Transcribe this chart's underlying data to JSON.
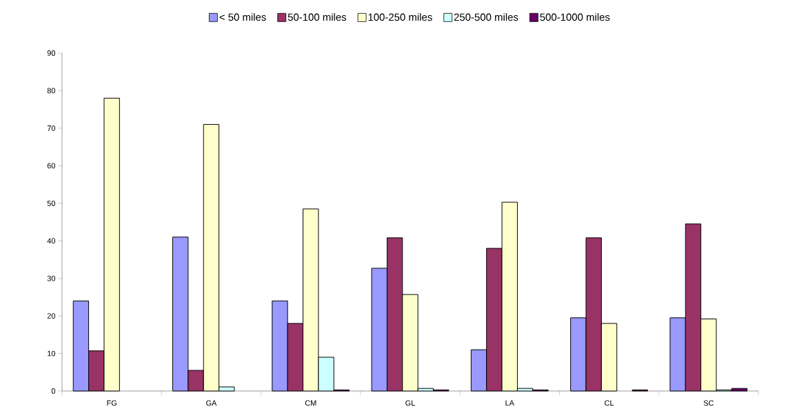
{
  "chart_data": {
    "type": "bar",
    "categories": [
      "FG",
      "GA",
      "CM",
      "GL",
      "LA",
      "CL",
      "SC"
    ],
    "series": [
      {
        "name": "< 50 miles",
        "color": "#9999ff",
        "values": [
          24,
          41,
          24,
          32.7,
          11,
          19.5,
          19.5
        ]
      },
      {
        "name": "50-100 miles",
        "color": "#993366",
        "values": [
          10.7,
          5.5,
          18,
          40.8,
          38,
          40.8,
          44.5
        ]
      },
      {
        "name": "100-250 miles",
        "color": "#ffffcc",
        "values": [
          78,
          71,
          48.5,
          25.7,
          50.3,
          18,
          19.2
        ]
      },
      {
        "name": "250-500 miles",
        "color": "#ccffff",
        "values": [
          null,
          1.1,
          9,
          0.7,
          0.7,
          null,
          0.3
        ]
      },
      {
        "name": "500-1000 miles",
        "color": "#660066",
        "values": [
          null,
          null,
          0.3,
          0.3,
          0.3,
          0.3,
          0.7
        ]
      }
    ],
    "ylim": [
      0,
      90
    ],
    "yticks": [
      0,
      10,
      20,
      30,
      40,
      50,
      60,
      70,
      80,
      90
    ],
    "grid": false,
    "legend": "top"
  }
}
